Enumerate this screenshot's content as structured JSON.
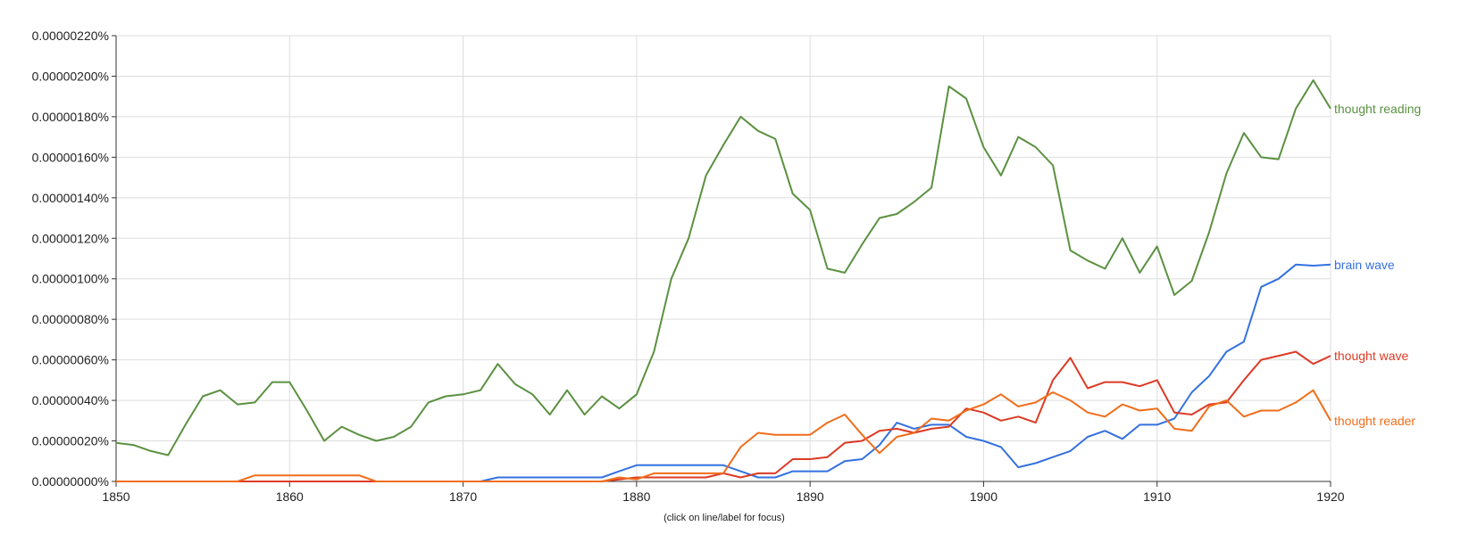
{
  "chart_data": {
    "type": "line",
    "x_range": [
      1850,
      1920
    ],
    "y_range": [
      0,
      2.2e-08
    ],
    "grid": true,
    "legend": "inline-right",
    "note": "(click on line/label for focus)",
    "x_ticks": [
      {
        "value": 1850,
        "label": "1850"
      },
      {
        "value": 1860,
        "label": "1860"
      },
      {
        "value": 1870,
        "label": "1870"
      },
      {
        "value": 1880,
        "label": "1880"
      },
      {
        "value": 1890,
        "label": "1890"
      },
      {
        "value": 1900,
        "label": "1900"
      },
      {
        "value": 1910,
        "label": "1910"
      },
      {
        "value": 1920,
        "label": "1920"
      }
    ],
    "y_ticks": [
      {
        "value": 0,
        "label": "0.00000000%"
      },
      {
        "value": 2e-09,
        "label": "0.00000020%"
      },
      {
        "value": 4e-09,
        "label": "0.00000040%"
      },
      {
        "value": 6e-09,
        "label": "0.00000060%"
      },
      {
        "value": 8e-09,
        "label": "0.00000080%"
      },
      {
        "value": 1e-08,
        "label": "0.00000100%"
      },
      {
        "value": 1.2e-08,
        "label": "0.00000120%"
      },
      {
        "value": 1.4e-08,
        "label": "0.00000140%"
      },
      {
        "value": 1.6e-08,
        "label": "0.00000160%"
      },
      {
        "value": 1.8e-08,
        "label": "0.00000180%"
      },
      {
        "value": 2e-08,
        "label": "0.00000200%"
      },
      {
        "value": 2.2e-08,
        "label": "0.00000220%"
      }
    ],
    "x": [
      1850,
      1851,
      1852,
      1853,
      1854,
      1855,
      1856,
      1857,
      1858,
      1859,
      1860,
      1861,
      1862,
      1863,
      1864,
      1865,
      1866,
      1867,
      1868,
      1869,
      1870,
      1871,
      1872,
      1873,
      1874,
      1875,
      1876,
      1877,
      1878,
      1879,
      1880,
      1881,
      1882,
      1883,
      1884,
      1885,
      1886,
      1887,
      1888,
      1889,
      1890,
      1891,
      1892,
      1893,
      1894,
      1895,
      1896,
      1897,
      1898,
      1899,
      1900,
      1901,
      1902,
      1903,
      1904,
      1905,
      1906,
      1907,
      1908,
      1909,
      1910,
      1911,
      1912,
      1913,
      1914,
      1915,
      1916,
      1917,
      1918,
      1919,
      1920
    ],
    "series": [
      {
        "name": "thought reading",
        "color": "#5b9141",
        "values": [
          1.9e-09,
          1.8e-09,
          1.5e-09,
          1.3e-09,
          2.8e-09,
          4.2e-09,
          4.5e-09,
          3.8e-09,
          3.9e-09,
          4.9e-09,
          4.9e-09,
          3.5e-09,
          2e-09,
          2.7e-09,
          2.3e-09,
          2e-09,
          2.2e-09,
          2.7e-09,
          3.9e-09,
          4.2e-09,
          4.3e-09,
          4.5e-09,
          5.8e-09,
          4.8e-09,
          4.3e-09,
          3.3e-09,
          4.5e-09,
          3.3e-09,
          4.2e-09,
          3.6e-09,
          4.3e-09,
          6.4e-09,
          1e-08,
          1.2e-08,
          1.51e-08,
          1.66e-08,
          1.8e-08,
          1.73e-08,
          1.69e-08,
          1.42e-08,
          1.34e-08,
          1.05e-08,
          1.03e-08,
          1.17e-08,
          1.3e-08,
          1.32e-08,
          1.38e-08,
          1.45e-08,
          1.95e-08,
          1.89e-08,
          1.65e-08,
          1.51e-08,
          1.7e-08,
          1.65e-08,
          1.56e-08,
          1.14e-08,
          1.09e-08,
          1.05e-08,
          1.2e-08,
          1.03e-08,
          1.16e-08,
          9.2e-09,
          9.9e-09,
          1.23e-08,
          1.52e-08,
          1.72e-08,
          1.6e-08,
          1.59e-08,
          1.84e-08,
          1.98e-08,
          1.84e-08
        ]
      },
      {
        "name": "brain wave",
        "color": "#3471e0",
        "values": [
          0,
          0,
          0,
          0,
          0,
          0,
          0,
          0,
          0,
          0,
          0,
          0,
          0,
          0,
          0,
          0,
          0,
          0,
          0,
          0,
          0,
          0,
          2e-10,
          2e-10,
          2e-10,
          2e-10,
          2e-10,
          2e-10,
          2e-10,
          5e-10,
          8e-10,
          8e-10,
          8e-10,
          8e-10,
          8e-10,
          8e-10,
          5e-10,
          2e-10,
          2e-10,
          5e-10,
          5e-10,
          5e-10,
          1e-09,
          1.1e-09,
          1.8e-09,
          2.9e-09,
          2.6e-09,
          2.8e-09,
          2.8e-09,
          2.2e-09,
          2e-09,
          1.7e-09,
          7e-10,
          9e-10,
          1.2e-09,
          1.5e-09,
          2.2e-09,
          2.5e-09,
          2.1e-09,
          2.8e-09,
          2.8e-09,
          3.1e-09,
          4.4e-09,
          5.2e-09,
          6.4e-09,
          6.9e-09,
          9.6e-09,
          1e-08,
          1.07e-08,
          1.065e-08,
          1.07e-08
        ]
      },
      {
        "name": "thought wave",
        "color": "#dc3b25",
        "values": [
          0,
          0,
          0,
          0,
          0,
          0,
          0,
          0,
          0,
          0,
          0,
          0,
          0,
          0,
          0,
          0,
          0,
          0,
          0,
          0,
          0,
          0,
          0,
          0,
          0,
          0,
          0,
          0,
          0,
          1e-10,
          2e-10,
          2e-10,
          2e-10,
          2e-10,
          2e-10,
          4e-10,
          2e-10,
          4e-10,
          4e-10,
          1.1e-09,
          1.1e-09,
          1.2e-09,
          1.9e-09,
          2e-09,
          2.5e-09,
          2.6e-09,
          2.4e-09,
          2.6e-09,
          2.7e-09,
          3.6e-09,
          3.4e-09,
          3e-09,
          3.2e-09,
          2.9e-09,
          5e-09,
          6.1e-09,
          4.6e-09,
          4.9e-09,
          4.9e-09,
          4.7e-09,
          5e-09,
          3.4e-09,
          3.3e-09,
          3.8e-09,
          3.9e-09,
          5e-09,
          6e-09,
          6.2e-09,
          6.4e-09,
          5.8e-09,
          6.2e-09
        ]
      },
      {
        "name": "thought reader",
        "color": "#f06d1a",
        "values": [
          0,
          0,
          0,
          0,
          0,
          0,
          0,
          0,
          3e-10,
          3e-10,
          3e-10,
          3e-10,
          3e-10,
          3e-10,
          3e-10,
          0,
          0,
          0,
          0,
          0,
          0,
          0,
          0,
          0,
          0,
          0,
          0,
          0,
          0,
          2e-10,
          1e-10,
          4e-10,
          4e-10,
          4e-10,
          4e-10,
          4e-10,
          1.7e-09,
          2.4e-09,
          2.3e-09,
          2.3e-09,
          2.3e-09,
          2.9e-09,
          3.3e-09,
          2.3e-09,
          1.4e-09,
          2.2e-09,
          2.4e-09,
          3.1e-09,
          3e-09,
          3.5e-09,
          3.8e-09,
          4.3e-09,
          3.7e-09,
          3.9e-09,
          4.4e-09,
          4e-09,
          3.4e-09,
          3.2e-09,
          3.8e-09,
          3.5e-09,
          3.6e-09,
          2.6e-09,
          2.5e-09,
          3.7e-09,
          4e-09,
          3.2e-09,
          3.5e-09,
          3.5e-09,
          3.9e-09,
          4.5e-09,
          3e-09
        ]
      }
    ]
  }
}
